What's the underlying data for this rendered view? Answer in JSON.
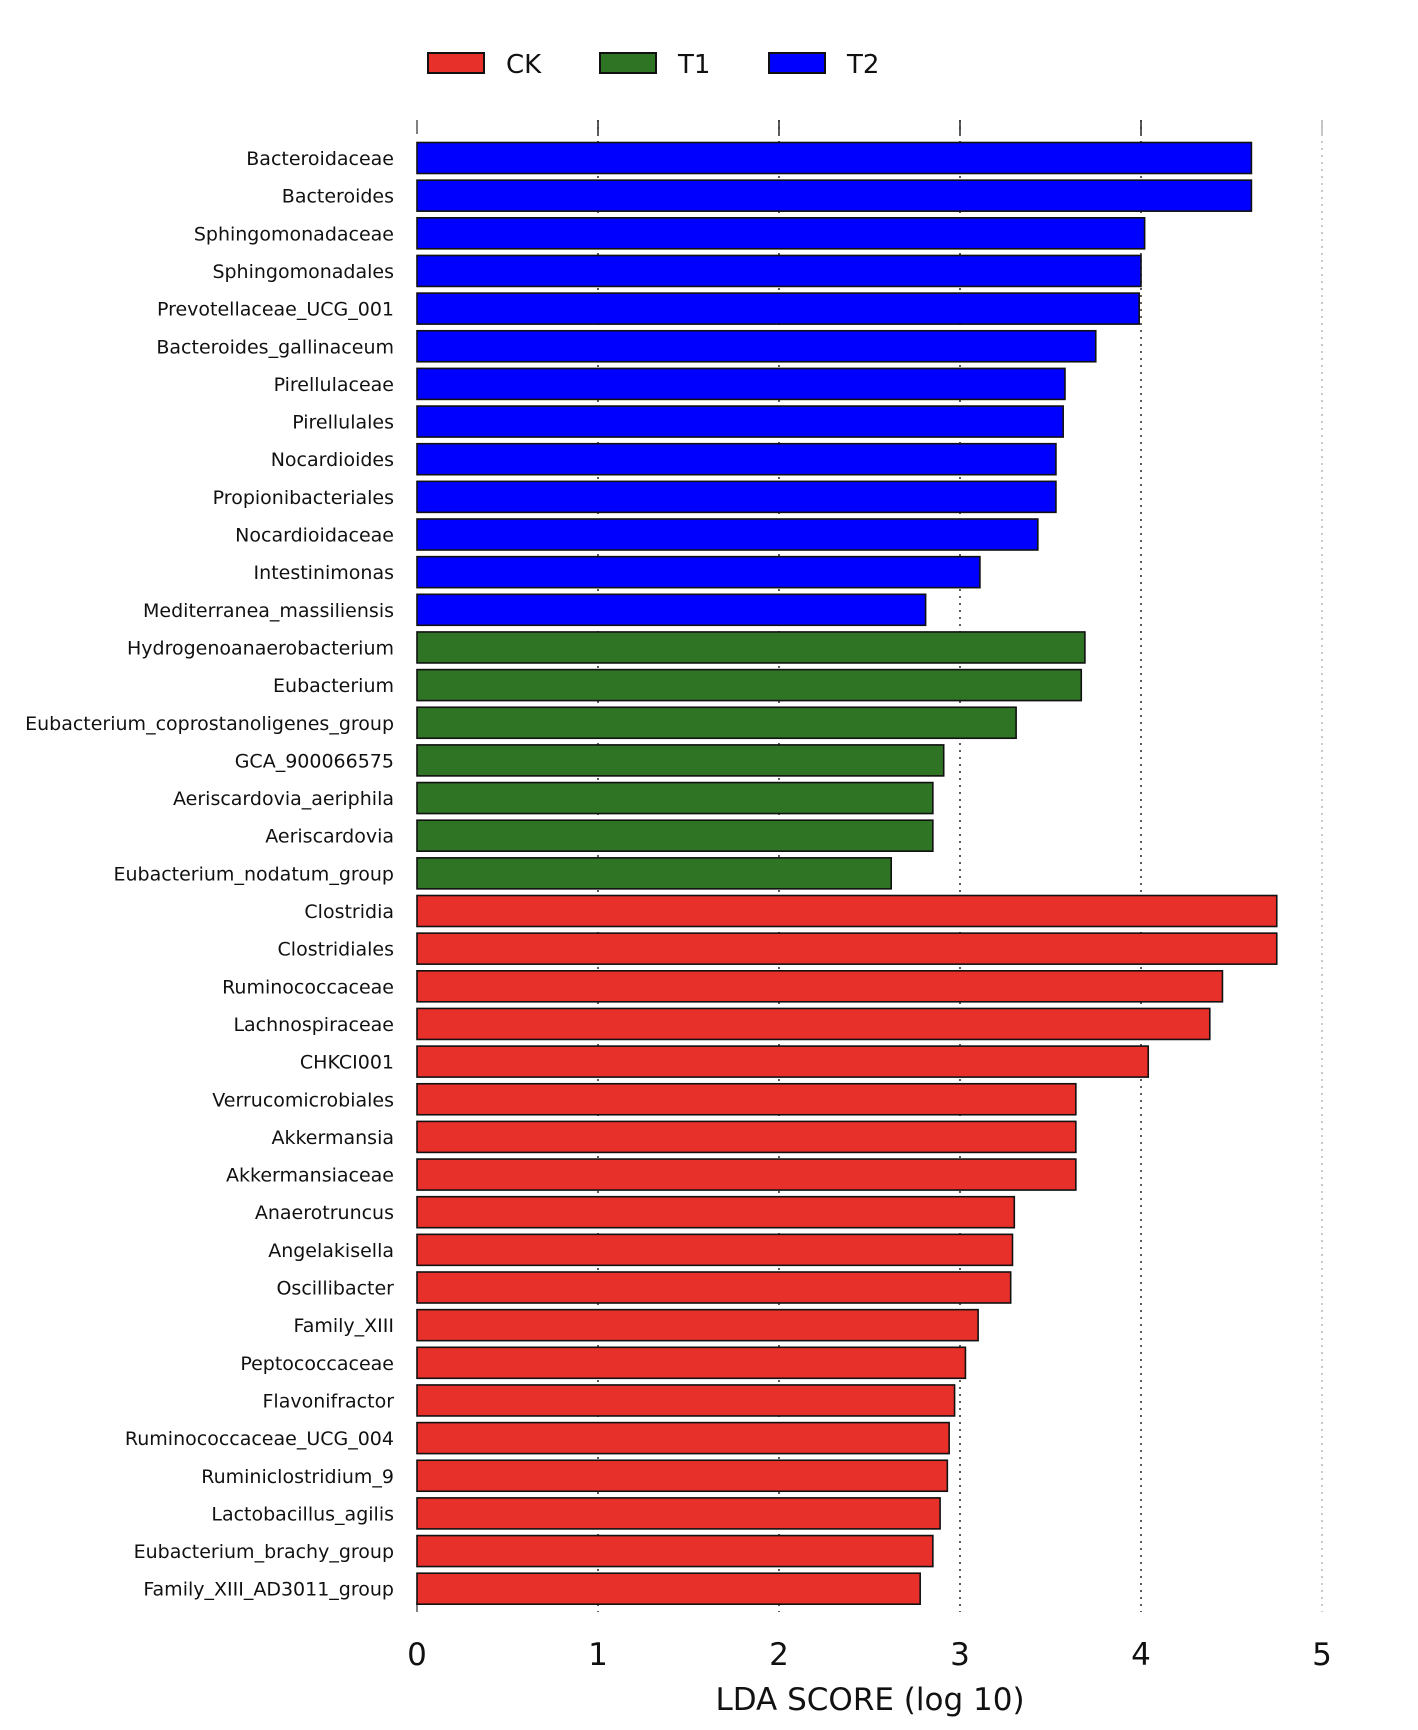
{
  "chart_data": {
    "type": "bar",
    "orientation": "horizontal",
    "title": "",
    "xlabel": "LDA SCORE (log 10)",
    "ylabel": "",
    "xlim": [
      0,
      5
    ],
    "xticks": [
      0,
      1,
      2,
      3,
      4,
      5
    ],
    "grid": "vertical dotted",
    "legend_position": "top",
    "legend": [
      {
        "name": "CK",
        "color": "#e8302a"
      },
      {
        "name": "T1",
        "color": "#2e7424"
      },
      {
        "name": "T2",
        "color": "#0000ff"
      }
    ],
    "categories": [
      "Bacteroidaceae",
      "Bacteroides",
      "Sphingomonadaceae",
      "Sphingomonadales",
      "Prevotellaceae_UCG_001",
      "Bacteroides_gallinaceum",
      "Pirellulaceae",
      "Pirellulales",
      "Nocardioides",
      "Propionibacteriales",
      "Nocardioidaceae",
      "Intestinimonas",
      "Mediterranea_massiliensis",
      "Hydrogenoanaerobacterium",
      "Eubacterium",
      "Eubacterium_coprostanoligenes_group",
      "GCA_900066575",
      "Aeriscardovia_aeriphila",
      "Aeriscardovia",
      "Eubacterium_nodatum_group",
      "Clostridia",
      "Clostridiales",
      "Ruminococcaceae",
      "Lachnospiraceae",
      "CHKCI001",
      "Verrucomicrobiales",
      "Akkermansia",
      "Akkermansiaceae",
      "Anaerotruncus",
      "Angelakisella",
      "Oscillibacter",
      "Family_XIII",
      "Peptococcaceae",
      "Flavonifractor",
      "Ruminococcaceae_UCG_004",
      "Ruminiclostridium_9",
      "Lactobacillus_agilis",
      "Eubacterium_brachy_group",
      "Family_XIII_AD3011_group"
    ],
    "values": [
      4.61,
      4.61,
      4.02,
      4.0,
      3.99,
      3.75,
      3.58,
      3.57,
      3.53,
      3.53,
      3.43,
      3.11,
      2.81,
      3.69,
      3.67,
      3.31,
      2.91,
      2.85,
      2.85,
      2.62,
      4.75,
      4.75,
      4.45,
      4.38,
      4.04,
      3.64,
      3.64,
      3.64,
      3.3,
      3.29,
      3.28,
      3.1,
      3.03,
      2.97,
      2.94,
      2.93,
      2.89,
      2.85,
      2.78
    ],
    "groups": [
      "T2",
      "T2",
      "T2",
      "T2",
      "T2",
      "T2",
      "T2",
      "T2",
      "T2",
      "T2",
      "T2",
      "T2",
      "T2",
      "T1",
      "T1",
      "T1",
      "T1",
      "T1",
      "T1",
      "T1",
      "CK",
      "CK",
      "CK",
      "CK",
      "CK",
      "CK",
      "CK",
      "CK",
      "CK",
      "CK",
      "CK",
      "CK",
      "CK",
      "CK",
      "CK",
      "CK",
      "CK",
      "CK",
      "CK"
    ]
  }
}
